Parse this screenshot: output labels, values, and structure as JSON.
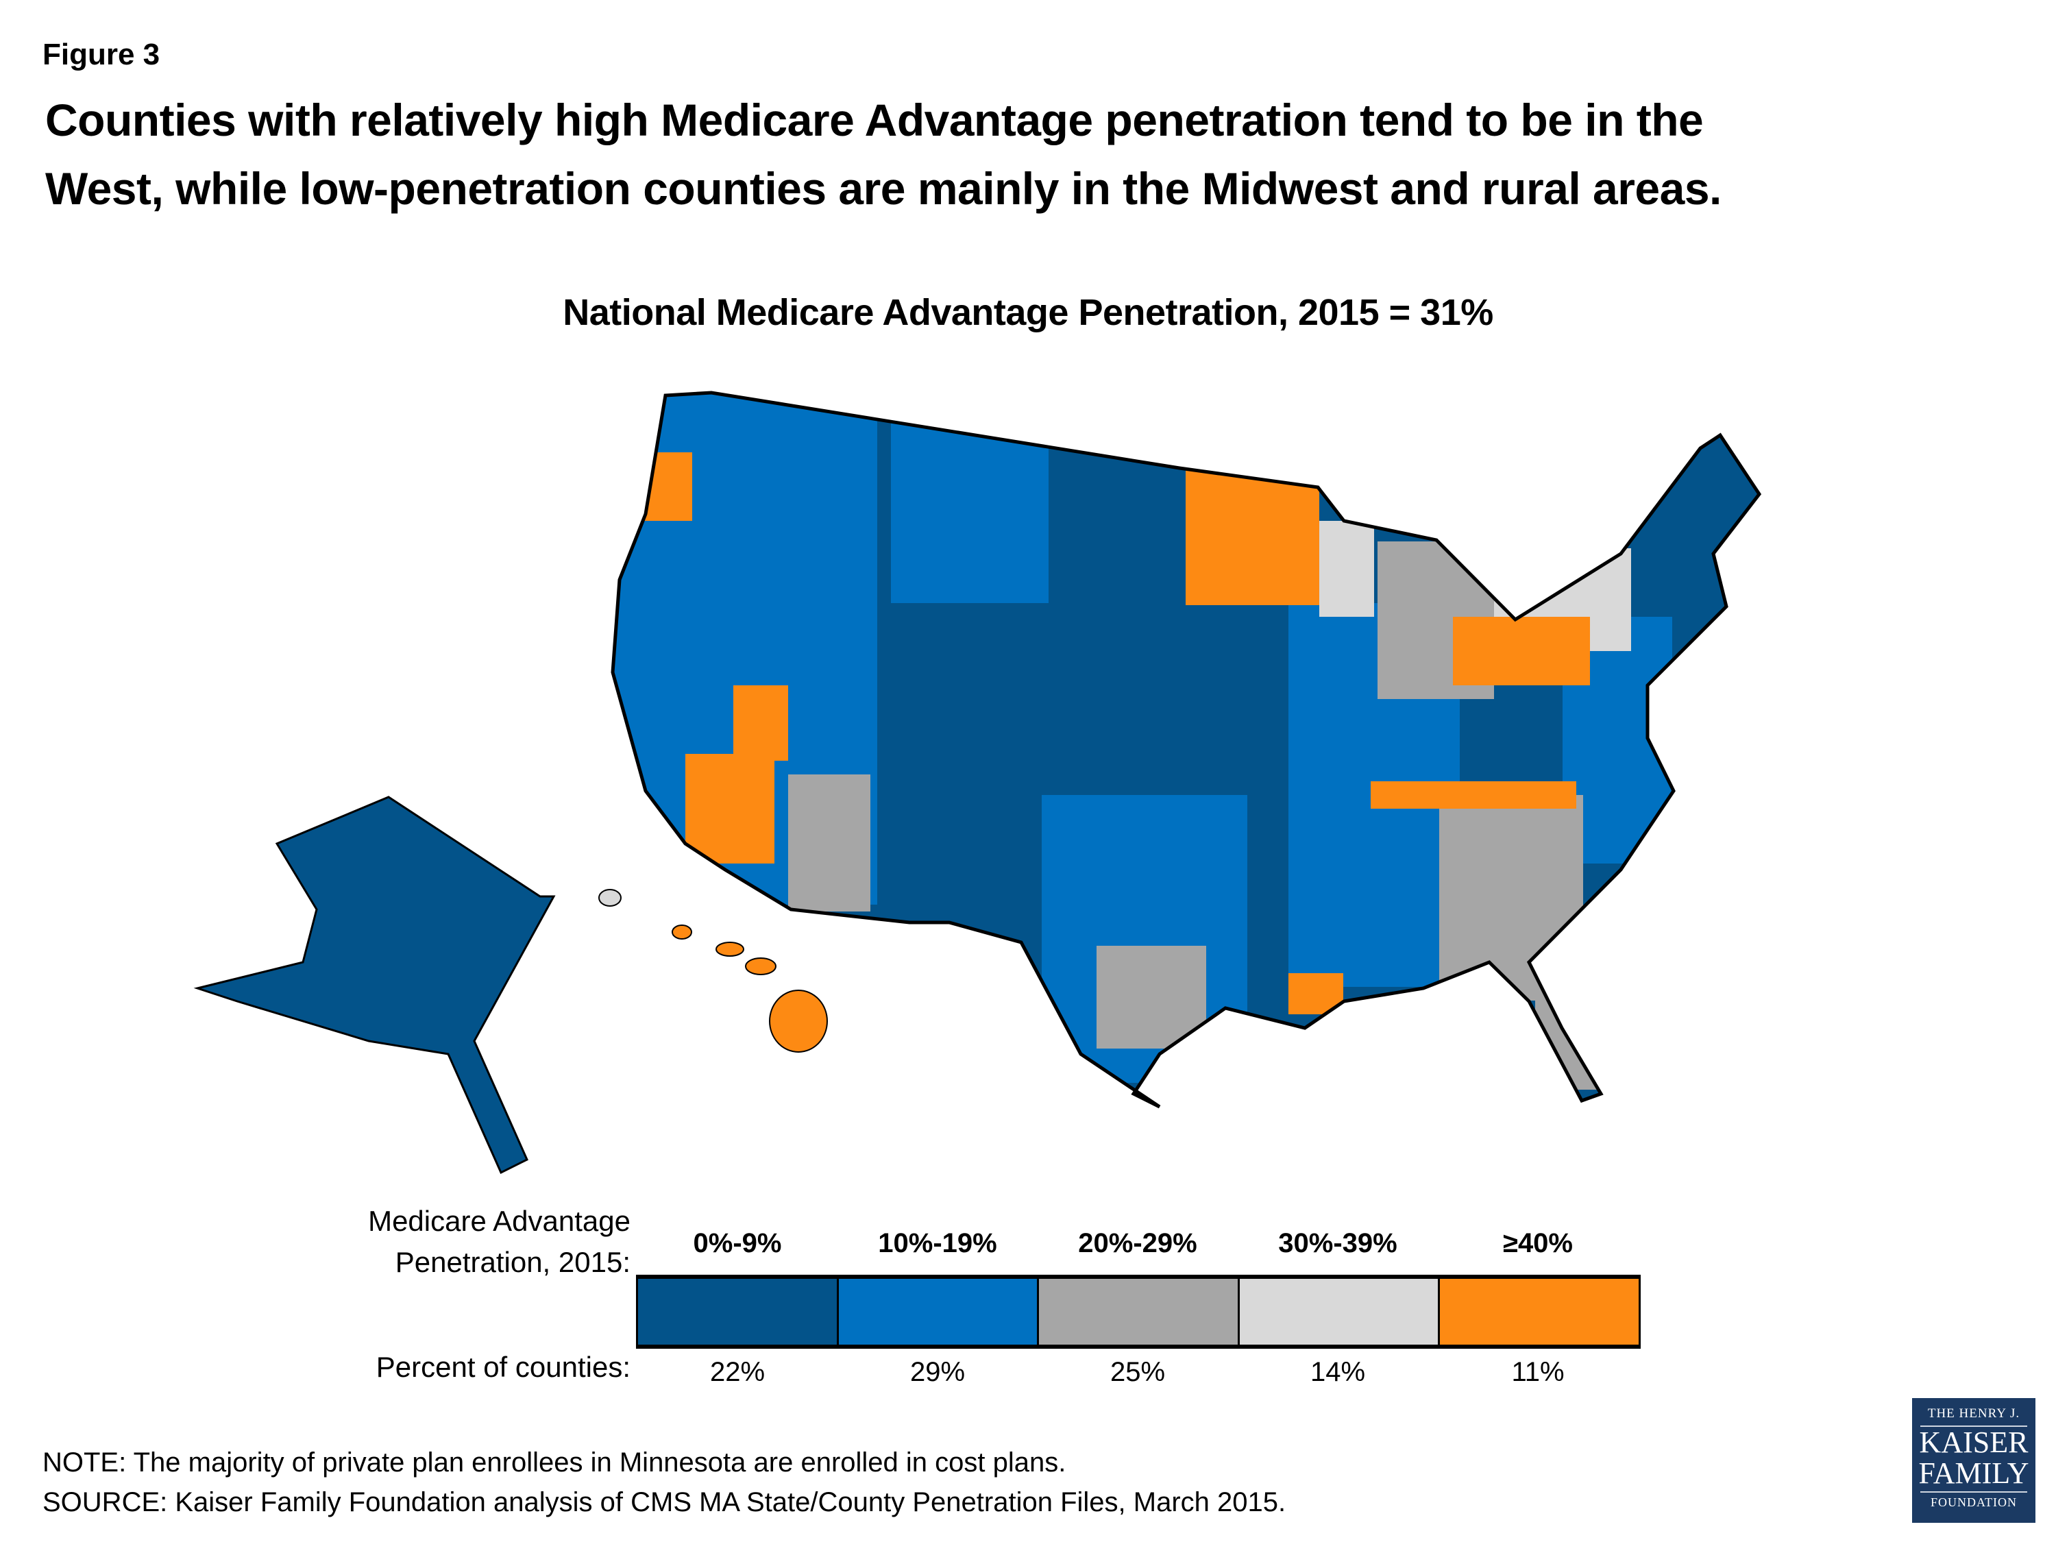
{
  "figure_label": "Figure 3",
  "title_line1": "Counties with relatively high Medicare Advantage penetration tend to be in the",
  "title_line2": "West, while low-penetration counties are mainly in the Midwest and rural areas.",
  "subtitle": "National Medicare Advantage Penetration, 2015 = 31%",
  "legend": {
    "title_line1": "Medicare Advantage",
    "title_line2": "Penetration, 2015:",
    "percent_label": "Percent of counties:",
    "categories": [
      {
        "label": "0%-9%",
        "percent": "22%",
        "color": "#03538a"
      },
      {
        "label": "10%-19%",
        "percent": "29%",
        "color": "#0071c1"
      },
      {
        "label": "20%-29%",
        "percent": "25%",
        "color": "#a6a6a6"
      },
      {
        "label": "30%-39%",
        "percent": "14%",
        "color": "#d9d9d9"
      },
      {
        "label": "≥40%",
        "percent": "11%",
        "color": "#fd8a13"
      }
    ]
  },
  "note": "NOTE: The majority of private plan enrollees in Minnesota are enrolled in cost plans.",
  "source": "SOURCE: Kaiser Family Foundation analysis of CMS MA State/County Penetration Files, March 2015.",
  "logo": {
    "line1": "THE HENRY J.",
    "line2": "KAISER",
    "line3": "FAMILY",
    "line4": "FOUNDATION",
    "color": "#1b3a63"
  }
}
